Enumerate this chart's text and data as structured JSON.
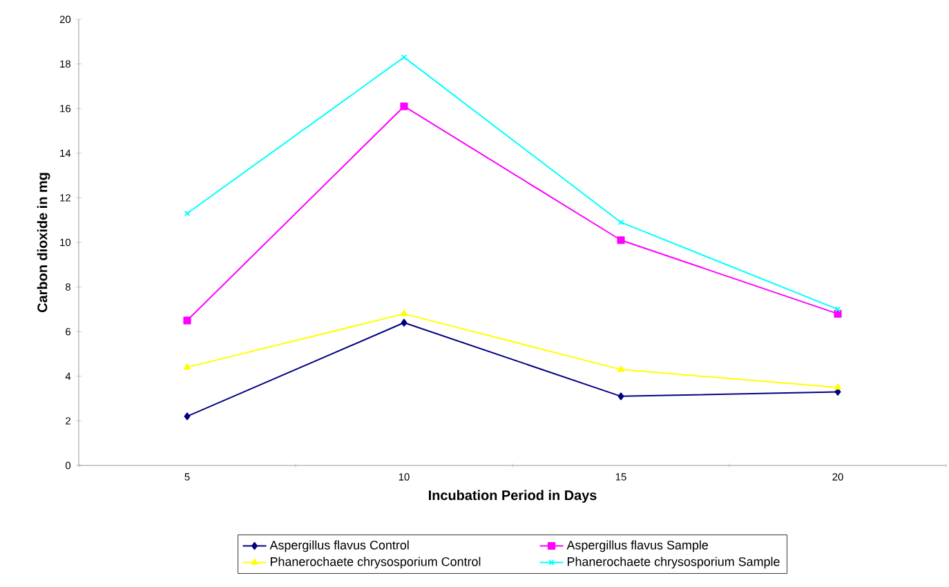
{
  "chart_data": {
    "type": "line",
    "xlabel": "Incubation Period in Days",
    "ylabel": "Carbon dioxide in mg",
    "categories": [
      "5",
      "10",
      "15",
      "20"
    ],
    "series": [
      {
        "name": "Aspergillus flavus Control",
        "color": "#000080",
        "marker": "diamond",
        "values": [
          2.2,
          6.4,
          3.1,
          3.3
        ]
      },
      {
        "name": "Aspergillus flavus Sample",
        "color": "#ff00ff",
        "marker": "square",
        "values": [
          6.5,
          16.1,
          10.1,
          6.8
        ]
      },
      {
        "name": "Phanerochaete chrysosporium Control",
        "color": "#ffff00",
        "marker": "triangle",
        "values": [
          4.4,
          6.8,
          4.3,
          3.5
        ]
      },
      {
        "name": "Phanerochaete chrysosporium Sample",
        "color": "#00ffff",
        "marker": "cross",
        "values": [
          11.3,
          18.3,
          10.9,
          7.0
        ]
      }
    ],
    "ylim": [
      0,
      20
    ],
    "yticks": [
      0,
      2,
      4,
      6,
      8,
      10,
      12,
      14,
      16,
      18,
      20
    ],
    "grid": false,
    "legend": "bottom",
    "line_style": "solid"
  }
}
